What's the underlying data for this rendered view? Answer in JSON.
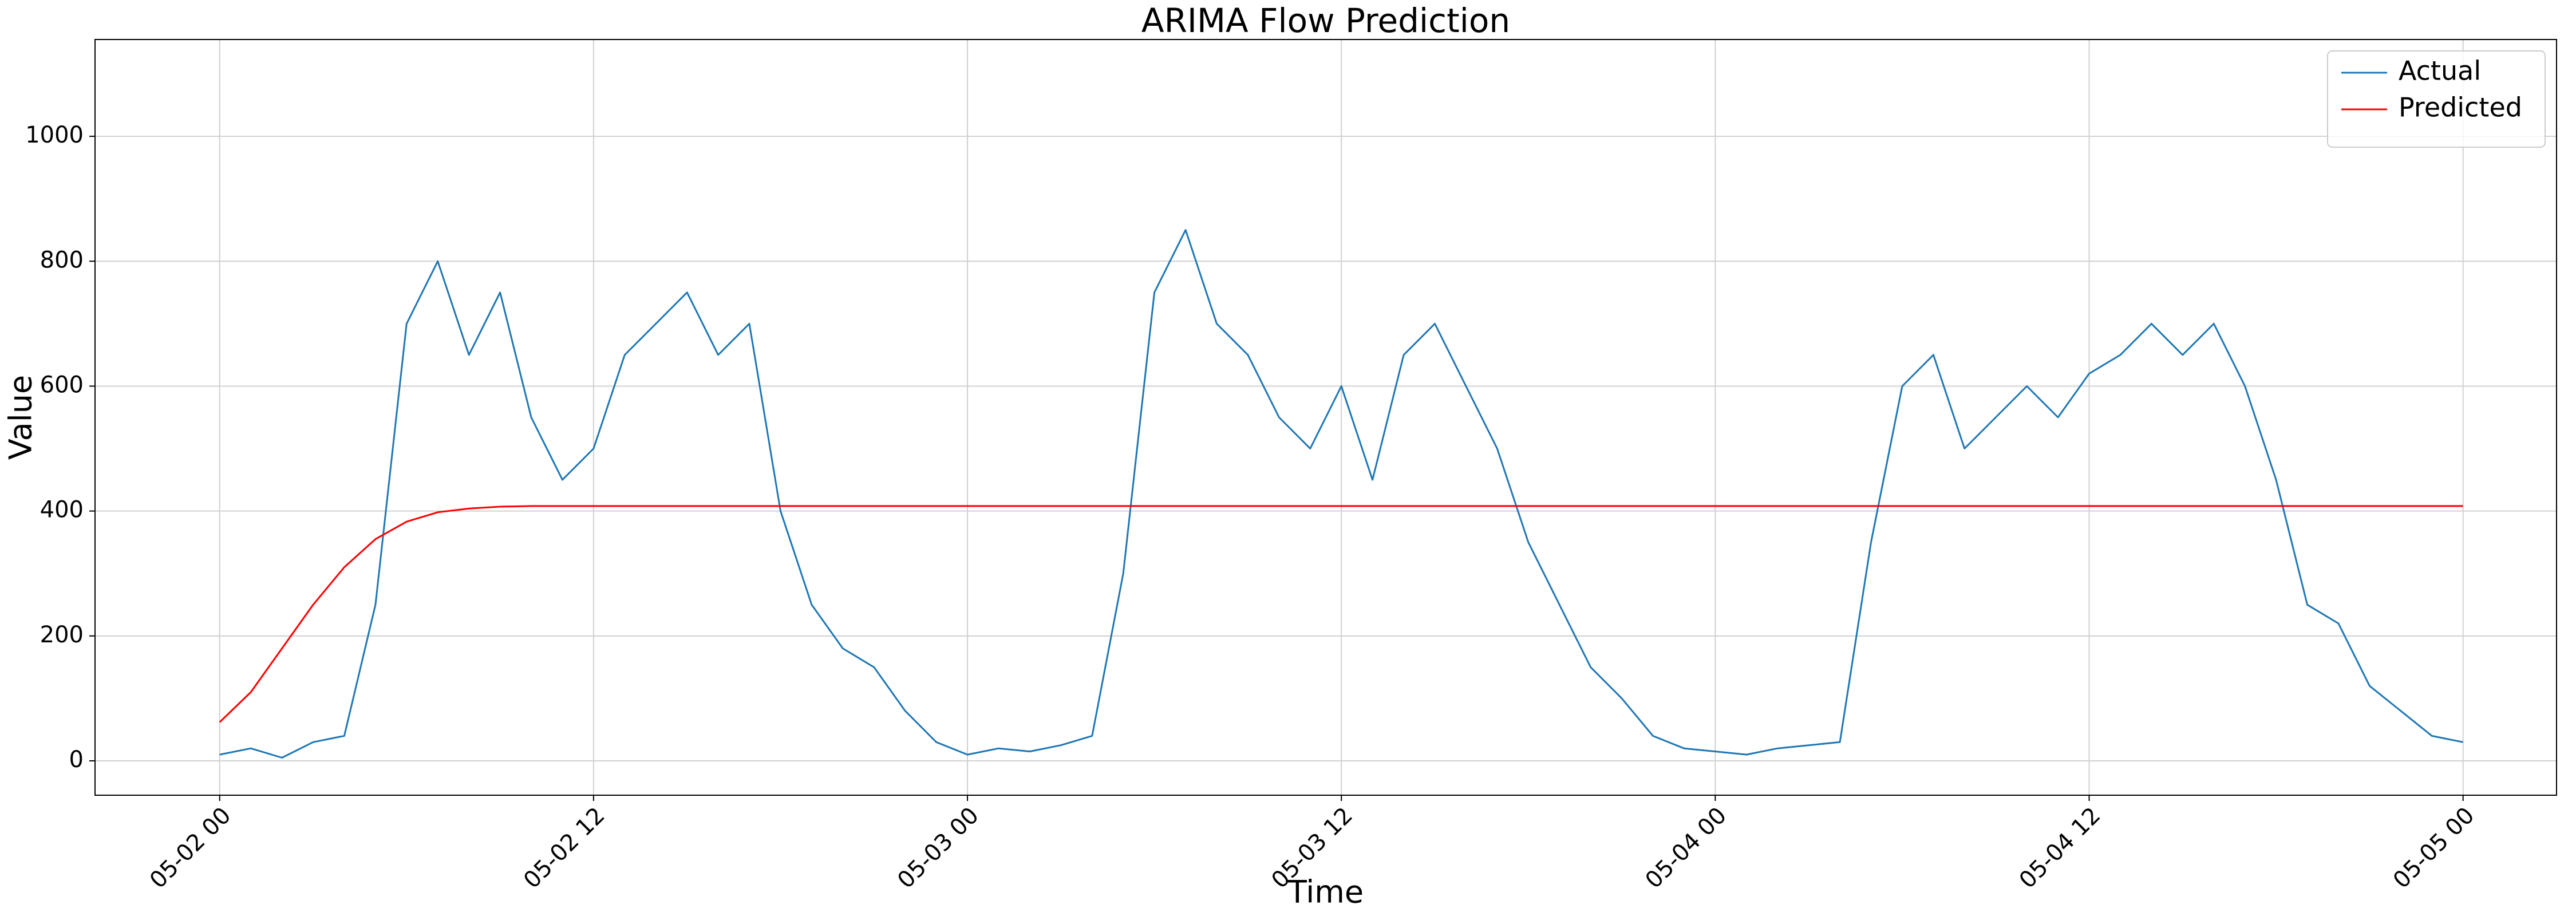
{
  "chart_data": {
    "type": "line",
    "title": "ARIMA Flow Prediction",
    "xlabel": "Time",
    "ylabel": "Value",
    "x": [
      "05-02 00",
      "05-02 01",
      "05-02 02",
      "05-02 03",
      "05-02 04",
      "05-02 05",
      "05-02 06",
      "05-02 07",
      "05-02 08",
      "05-02 09",
      "05-02 10",
      "05-02 11",
      "05-02 12",
      "05-02 13",
      "05-02 14",
      "05-02 15",
      "05-02 16",
      "05-02 17",
      "05-02 18",
      "05-02 19",
      "05-02 20",
      "05-02 21",
      "05-02 22",
      "05-02 23",
      "05-03 00",
      "05-03 01",
      "05-03 02",
      "05-03 03",
      "05-03 04",
      "05-03 05",
      "05-03 06",
      "05-03 07",
      "05-03 08",
      "05-03 09",
      "05-03 10",
      "05-03 11",
      "05-03 12",
      "05-03 13",
      "05-03 14",
      "05-03 15",
      "05-03 16",
      "05-03 17",
      "05-03 18",
      "05-03 19",
      "05-03 20",
      "05-03 21",
      "05-03 22",
      "05-03 23",
      "05-04 00",
      "05-04 01",
      "05-04 02",
      "05-04 03",
      "05-04 04",
      "05-04 05",
      "05-04 06",
      "05-04 07",
      "05-04 08",
      "05-04 09",
      "05-04 10",
      "05-04 11",
      "05-04 12",
      "05-04 13",
      "05-04 14",
      "05-04 15",
      "05-04 16",
      "05-04 17",
      "05-04 18",
      "05-04 19",
      "05-04 20",
      "05-04 21",
      "05-04 22",
      "05-04 23",
      "05-05 00"
    ],
    "series": [
      {
        "name": "Actual",
        "color": "#1f77b4",
        "values": [
          10,
          20,
          5,
          30,
          40,
          250,
          700,
          800,
          650,
          750,
          550,
          450,
          500,
          650,
          700,
          750,
          650,
          700,
          400,
          250,
          180,
          150,
          80,
          30,
          10,
          20,
          15,
          25,
          40,
          300,
          750,
          850,
          700,
          650,
          550,
          500,
          600,
          450,
          650,
          700,
          600,
          500,
          350,
          250,
          150,
          100,
          40,
          20,
          15,
          10,
          20,
          25,
          30,
          350,
          600,
          650,
          500,
          550,
          600,
          550,
          620,
          650,
          700,
          650,
          700,
          600,
          450,
          250,
          220,
          120,
          80,
          40,
          30
        ]
      },
      {
        "name": "Predicted",
        "color": "#ff0000",
        "values": [
          62,
          110,
          180,
          250,
          310,
          355,
          383,
          398,
          404,
          407,
          408,
          408,
          408,
          408,
          408,
          408,
          408,
          408,
          408,
          408,
          408,
          408,
          408,
          408,
          408,
          408,
          408,
          408,
          408,
          408,
          408,
          408,
          408,
          408,
          408,
          408,
          408,
          408,
          408,
          408,
          408,
          408,
          408,
          408,
          408,
          408,
          408,
          408,
          408,
          408,
          408,
          408,
          408,
          408,
          408,
          408,
          408,
          408,
          408,
          408,
          408,
          408,
          408,
          408,
          408,
          408,
          408,
          408,
          408,
          408,
          408,
          408,
          408
        ]
      }
    ],
    "xlim": [
      "05-01 20",
      "05-05 03"
    ],
    "xticks": [
      "05-02 00",
      "05-02 12",
      "05-03 00",
      "05-03 12",
      "05-04 00",
      "05-04 12",
      "05-05 00"
    ],
    "ylim": [
      -55,
      1155
    ],
    "yticks": [
      0,
      200,
      400,
      600,
      800,
      1000
    ],
    "grid": true,
    "legend": "upper right"
  }
}
